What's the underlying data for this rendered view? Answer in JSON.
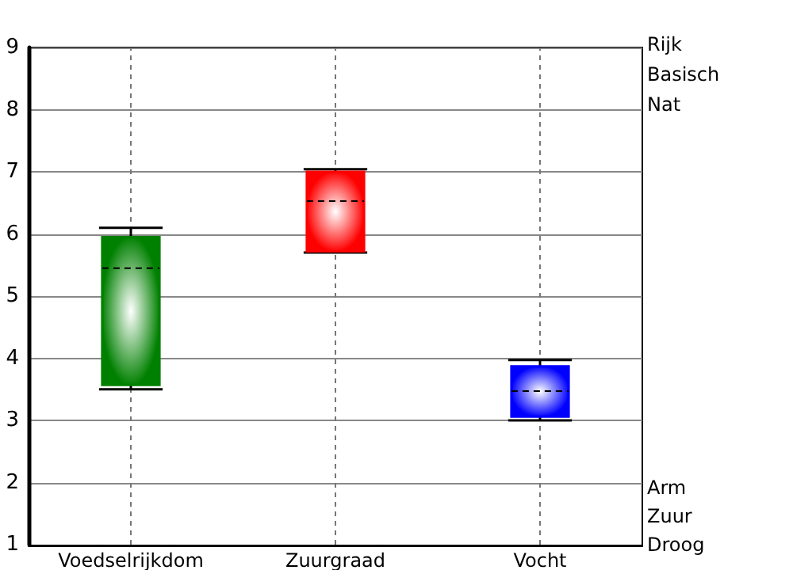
{
  "chart_data": {
    "type": "box",
    "categories": [
      "Voedselrijkdom",
      "Zuurgraad",
      "Vocht"
    ],
    "boxes": [
      {
        "low": 3.5,
        "q1": 3.57,
        "median": 5.45,
        "q3": 5.95,
        "high": 6.1
      },
      {
        "low": 5.7,
        "q1": 5.72,
        "median": 6.53,
        "q3": 7.0,
        "high": 7.04
      },
      {
        "low": 3.0,
        "q1": 3.06,
        "median": 3.47,
        "q3": 3.87,
        "high": 3.97
      }
    ],
    "colors": [
      "#008000",
      "#ff0000",
      "#0000ff"
    ],
    "ylim": [
      1,
      9
    ],
    "yticks": [
      1,
      2,
      3,
      4,
      5,
      6,
      7,
      8,
      9
    ],
    "annotations": [
      "Rijk",
      "Basisch",
      "Nat",
      "Arm",
      "Zuur",
      "Droog"
    ],
    "grid": true,
    "line_style": "dashed"
  }
}
